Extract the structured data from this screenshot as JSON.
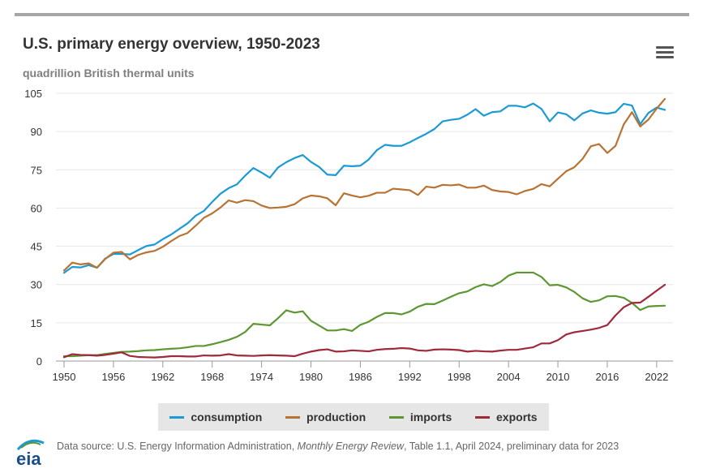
{
  "header": {
    "title": "U.S. primary energy overview, 1950-2023",
    "subtitle": "quadrillion British thermal units",
    "menu_icon": "hamburger-menu-icon"
  },
  "chart_data": {
    "type": "line",
    "title": "U.S. primary energy overview, 1950-2023",
    "ylabel": "quadrillion British thermal units",
    "ylim": [
      0,
      105
    ],
    "yticks": [
      0,
      15,
      30,
      45,
      60,
      75,
      90,
      105
    ],
    "xlim": [
      1950,
      2023
    ],
    "xticks": [
      1950,
      1956,
      1962,
      1968,
      1974,
      1980,
      1986,
      1992,
      1998,
      2004,
      2010,
      2016,
      2022
    ],
    "grid": true,
    "legend_position": "bottom",
    "x": [
      1950,
      1951,
      1952,
      1953,
      1954,
      1955,
      1956,
      1957,
      1958,
      1959,
      1960,
      1961,
      1962,
      1963,
      1964,
      1965,
      1966,
      1967,
      1968,
      1969,
      1970,
      1971,
      1972,
      1973,
      1974,
      1975,
      1976,
      1977,
      1978,
      1979,
      1980,
      1981,
      1982,
      1983,
      1984,
      1985,
      1986,
      1987,
      1988,
      1989,
      1990,
      1991,
      1992,
      1993,
      1994,
      1995,
      1996,
      1997,
      1998,
      1999,
      2000,
      2001,
      2002,
      2003,
      2004,
      2005,
      2006,
      2007,
      2008,
      2009,
      2010,
      2011,
      2012,
      2013,
      2014,
      2015,
      2016,
      2017,
      2018,
      2019,
      2020,
      2021,
      2022,
      2023
    ],
    "series": [
      {
        "name": "consumption",
        "color": "#1b9ad6",
        "values": [
          34.6,
          36.9,
          36.7,
          37.6,
          36.6,
          40.2,
          42.0,
          42.0,
          41.8,
          43.5,
          45.1,
          45.7,
          47.8,
          49.6,
          51.8,
          54.0,
          57.0,
          58.9,
          62.4,
          65.6,
          67.8,
          69.3,
          72.7,
          75.7,
          73.9,
          71.9,
          75.9,
          78.0,
          79.6,
          80.8,
          78.1,
          76.1,
          73.1,
          72.9,
          76.6,
          76.4,
          76.6,
          79.0,
          82.7,
          84.8,
          84.4,
          84.4,
          85.8,
          87.5,
          89.1,
          91.0,
          94.0,
          94.6,
          95.0,
          96.6,
          98.8,
          96.2,
          97.6,
          97.9,
          100.1,
          100.1,
          99.5,
          101.0,
          98.9,
          94.0,
          97.5,
          96.8,
          94.4,
          97.1,
          98.3,
          97.4,
          97.0,
          97.6,
          100.9,
          100.2,
          92.9,
          97.3,
          99.4,
          98.5
        ]
      },
      {
        "name": "production",
        "color": "#b87333",
        "values": [
          35.5,
          38.6,
          37.9,
          38.3,
          36.6,
          40.0,
          42.5,
          42.8,
          39.9,
          41.6,
          42.6,
          43.2,
          44.8,
          47.0,
          49.0,
          50.2,
          53.1,
          56.2,
          57.9,
          60.2,
          63.0,
          62.1,
          63.1,
          62.7,
          61.0,
          60.0,
          60.2,
          60.5,
          61.5,
          63.8,
          64.9,
          64.6,
          63.8,
          61.1,
          65.8,
          64.9,
          64.2,
          64.8,
          66.0,
          66.0,
          67.6,
          67.3,
          67.0,
          65.1,
          68.4,
          68.0,
          69.1,
          68.9,
          69.2,
          68.0,
          68.0,
          68.8,
          67.1,
          66.5,
          66.3,
          65.4,
          66.7,
          67.5,
          69.4,
          68.5,
          71.5,
          74.4,
          76.0,
          79.3,
          84.2,
          85.1,
          81.6,
          84.4,
          92.8,
          97.6,
          92.0,
          94.7,
          99.0,
          102.8
        ]
      },
      {
        "name": "imports",
        "color": "#5d9732",
        "values": [
          1.9,
          1.9,
          2.1,
          2.3,
          2.3,
          2.8,
          3.2,
          3.6,
          3.7,
          3.9,
          4.2,
          4.3,
          4.6,
          4.8,
          5.0,
          5.4,
          5.9,
          5.9,
          6.6,
          7.4,
          8.3,
          9.5,
          11.4,
          14.6,
          14.3,
          14.0,
          16.8,
          19.9,
          19.0,
          19.5,
          15.8,
          13.9,
          12.0,
          12.0,
          12.5,
          11.8,
          14.2,
          15.4,
          17.3,
          18.8,
          18.8,
          18.3,
          19.4,
          21.3,
          22.4,
          22.3,
          23.7,
          25.2,
          26.6,
          27.3,
          29.0,
          30.1,
          29.4,
          31.0,
          33.5,
          34.7,
          34.7,
          34.7,
          33.0,
          29.7,
          29.9,
          28.9,
          27.1,
          24.6,
          23.2,
          23.8,
          25.4,
          25.5,
          24.8,
          22.8,
          20.0,
          21.4,
          21.6,
          21.7
        ]
      },
      {
        "name": "exports",
        "color": "#9e2a3b",
        "values": [
          1.5,
          2.7,
          2.4,
          2.3,
          2.1,
          2.4,
          2.9,
          3.4,
          2.0,
          1.6,
          1.5,
          1.4,
          1.6,
          1.9,
          1.9,
          1.8,
          1.8,
          2.2,
          2.1,
          2.2,
          2.7,
          2.2,
          2.1,
          2.0,
          2.2,
          2.3,
          2.2,
          2.1,
          1.9,
          2.9,
          3.7,
          4.3,
          4.6,
          3.7,
          3.8,
          4.2,
          4.0,
          3.8,
          4.4,
          4.7,
          4.8,
          5.1,
          4.9,
          4.2,
          4.0,
          4.5,
          4.6,
          4.5,
          4.3,
          3.7,
          4.0,
          3.8,
          3.7,
          4.1,
          4.4,
          4.4,
          4.9,
          5.4,
          6.9,
          6.9,
          8.2,
          10.4,
          11.3,
          11.8,
          12.3,
          13.0,
          14.1,
          17.9,
          21.1,
          22.8,
          22.9,
          25.2,
          27.6,
          29.9
        ]
      }
    ]
  },
  "legend": {
    "items": [
      {
        "label": "consumption",
        "color": "#1b9ad6"
      },
      {
        "label": "production",
        "color": "#b87333"
      },
      {
        "label": "imports",
        "color": "#5d9732"
      },
      {
        "label": "exports",
        "color": "#9e2a3b"
      }
    ]
  },
  "footer": {
    "logo_text": "eia",
    "source_prefix": "Data source: U.S. Energy Information Administration, ",
    "source_pub": "Monthly Energy Review",
    "source_suffix": ", Table 1.1, April 2024, preliminary data for 2023"
  }
}
